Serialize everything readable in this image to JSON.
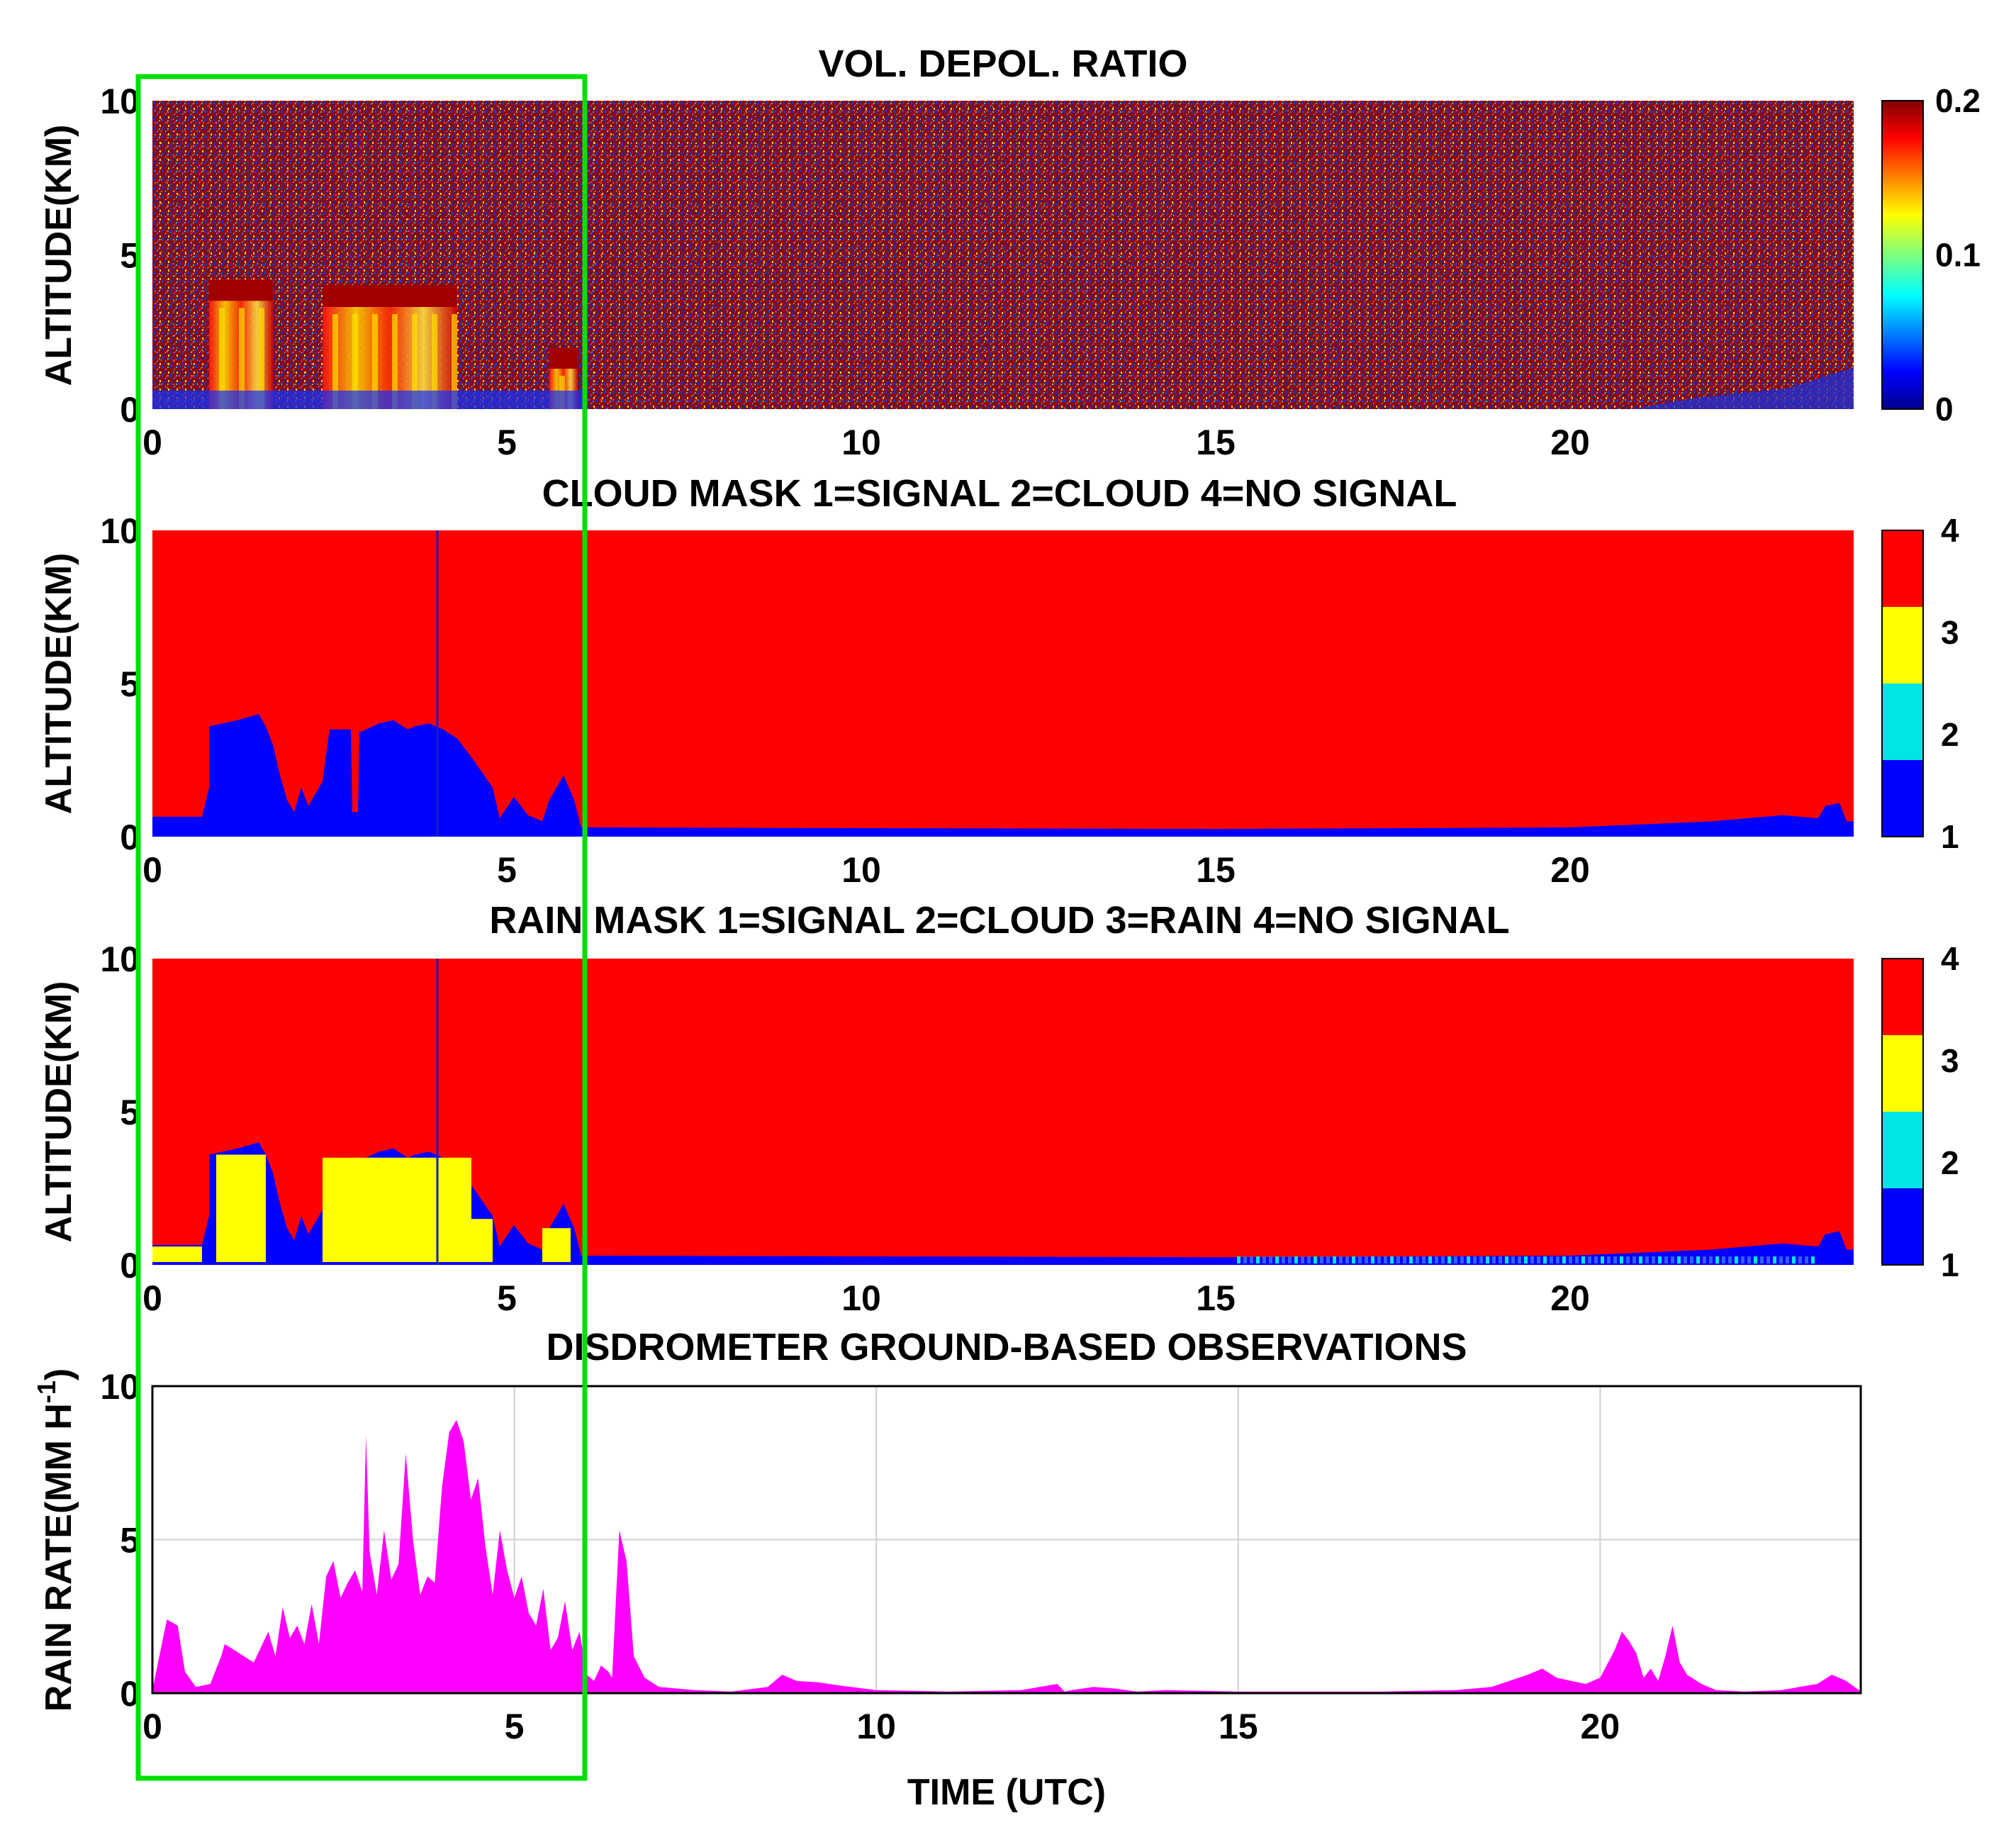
{
  "chart_data": [
    {
      "type": "heatmap",
      "title": "VOL. DEPOL. RATIO",
      "ylabel": "ALTITUDE(KM)",
      "xlabel": "",
      "xlim": [
        0,
        24
      ],
      "ylim": [
        0,
        10
      ],
      "xticks": [
        "0",
        "5",
        "10",
        "15",
        "20"
      ],
      "yticks": [
        "0",
        "5",
        "10"
      ],
      "colorbar": {
        "range": [
          0,
          0.2
        ],
        "ticks": [
          "0",
          "0.1",
          "0.2"
        ],
        "colormap": "jet"
      },
      "features": [
        {
          "name": "cloud-1",
          "t_start": 0.8,
          "t_end": 1.7,
          "top_km": 4.2
        },
        {
          "name": "cloud-2",
          "t_start": 2.4,
          "t_end": 4.3,
          "top_km": 4.0
        },
        {
          "name": "cloud-3",
          "t_start": 5.6,
          "t_end": 6.0,
          "top_km": 2.0
        }
      ]
    },
    {
      "type": "heatmap",
      "title": "CLOUD MASK 1=SIGNAL 2=CLOUD 4=NO SIGNAL",
      "ylabel": "ALTITUDE(KM)",
      "xlabel": "",
      "xlim": [
        0,
        24
      ],
      "ylim": [
        0,
        10
      ],
      "xticks": [
        "0",
        "5",
        "10",
        "15",
        "20"
      ],
      "yticks": [
        "0",
        "5",
        "10"
      ],
      "colorbar": {
        "range": [
          1,
          4
        ],
        "ticks": [
          "1",
          "2",
          "3",
          "4"
        ],
        "colors": [
          "#0000ff",
          "#00e5e5",
          "#ffff00",
          "#ff0000"
        ]
      },
      "signal_top_km": [
        [
          0,
          0.65
        ],
        [
          0.7,
          0.65
        ],
        [
          0.8,
          1.6
        ],
        [
          0.85,
          0.65
        ],
        [
          0.8,
          0.65
        ],
        [
          0.8,
          3.6
        ],
        [
          1.2,
          3.8
        ],
        [
          1.5,
          4.0
        ],
        [
          1.6,
          3.6
        ],
        [
          1.7,
          3.0
        ],
        [
          1.8,
          2.0
        ],
        [
          1.9,
          1.2
        ],
        [
          2.0,
          0.8
        ],
        [
          2.1,
          1.6
        ],
        [
          2.2,
          1.0
        ],
        [
          2.4,
          1.8
        ],
        [
          2.5,
          3.5
        ],
        [
          2.8,
          3.5
        ],
        [
          2.82,
          0.8
        ],
        [
          2.9,
          0.8
        ],
        [
          2.92,
          3.4
        ],
        [
          3.2,
          3.7
        ],
        [
          3.4,
          3.8
        ],
        [
          3.6,
          3.5
        ],
        [
          3.7,
          3.6
        ],
        [
          3.9,
          3.7
        ],
        [
          4.1,
          3.5
        ],
        [
          4.3,
          3.2
        ],
        [
          4.5,
          2.6
        ],
        [
          4.8,
          1.6
        ],
        [
          4.9,
          0.6
        ],
        [
          5.1,
          1.3
        ],
        [
          5.2,
          1.0
        ],
        [
          5.3,
          0.7
        ],
        [
          5.5,
          0.5
        ],
        [
          5.6,
          1.2
        ],
        [
          5.8,
          2.0
        ],
        [
          5.95,
          1.2
        ],
        [
          6.05,
          0.3
        ],
        [
          6.2,
          0.3
        ],
        [
          15.0,
          0.25
        ],
        [
          20.0,
          0.3
        ],
        [
          21.0,
          0.4
        ],
        [
          22.0,
          0.5
        ],
        [
          23.0,
          0.7
        ],
        [
          23.5,
          0.6
        ],
        [
          23.6,
          1.0
        ],
        [
          23.8,
          1.1
        ],
        [
          23.9,
          0.5
        ],
        [
          24,
          0.5
        ]
      ]
    },
    {
      "type": "heatmap",
      "title": "RAIN MASK 1=SIGNAL 2=CLOUD 3=RAIN 4=NO SIGNAL",
      "ylabel": "ALTITUDE(KM)",
      "xlabel": "",
      "xlim": [
        0,
        24
      ],
      "ylim": [
        0,
        10
      ],
      "xticks": [
        "0",
        "5",
        "10",
        "15",
        "20"
      ],
      "yticks": [
        "0",
        "5",
        "10"
      ],
      "colorbar": {
        "range": [
          1,
          4
        ],
        "ticks": [
          "1",
          "2",
          "3",
          "4"
        ],
        "colors": [
          "#0000ff",
          "#00e5e5",
          "#ffff00",
          "#ff0000"
        ]
      },
      "rain_intervals": [
        {
          "t_start": 0.0,
          "t_end": 0.7,
          "top_km": 0.6
        },
        {
          "t_start": 0.9,
          "t_end": 1.6,
          "top_km": 3.6
        },
        {
          "t_start": 2.4,
          "t_end": 4.5,
          "top_km": 3.5
        },
        {
          "t_start": 4.5,
          "t_end": 4.8,
          "top_km": 1.5
        },
        {
          "t_start": 5.5,
          "t_end": 5.9,
          "top_km": 1.2
        }
      ]
    },
    {
      "type": "area",
      "title": "DISDROMETER GROUND-BASED OBSERVATIONS",
      "xlabel": "TIME (UTC)",
      "ylabel": "RAIN RATE(MM H",
      "ylabel_sup": "-1",
      "ylabel_suffix": ")",
      "xlim": [
        0,
        23.6
      ],
      "ylim": [
        0,
        10
      ],
      "xticks": [
        "0",
        "5",
        "10",
        "15",
        "20"
      ],
      "yticks": [
        "0",
        "5",
        "10"
      ],
      "grid": true,
      "color": "#ff00ff",
      "x": [
        0.0,
        0.2,
        0.35,
        0.45,
        0.6,
        0.8,
        0.95,
        1.0,
        1.2,
        1.4,
        1.6,
        1.7,
        1.8,
        1.9,
        2.0,
        2.1,
        2.2,
        2.3,
        2.4,
        2.5,
        2.6,
        2.7,
        2.8,
        2.9,
        2.95,
        3.0,
        3.1,
        3.2,
        3.3,
        3.4,
        3.5,
        3.6,
        3.7,
        3.8,
        3.9,
        4.0,
        4.1,
        4.2,
        4.3,
        4.4,
        4.5,
        4.6,
        4.7,
        4.8,
        4.9,
        5.0,
        5.1,
        5.2,
        5.3,
        5.4,
        5.5,
        5.6,
        5.7,
        5.8,
        5.9,
        6.0,
        6.1,
        6.2,
        6.3,
        6.35,
        6.45,
        6.55,
        6.65,
        6.8,
        7.0,
        7.5,
        8.0,
        8.5,
        8.7,
        8.9,
        9.2,
        9.5,
        10.0,
        11.0,
        12.0,
        12.5,
        12.6,
        12.7,
        13.0,
        13.3,
        13.6,
        14.0,
        15.0,
        16.0,
        17.0,
        18.0,
        18.5,
        19.0,
        19.2,
        19.4,
        19.6,
        19.8,
        20.0,
        20.2,
        20.3,
        20.4,
        20.5,
        20.6,
        20.7,
        20.8,
        20.9,
        21.0,
        21.1,
        21.2,
        21.4,
        21.6,
        22.0,
        22.5,
        23.0,
        23.2,
        23.4,
        23.6
      ],
      "values": [
        0.1,
        2.4,
        2.2,
        0.7,
        0.2,
        0.3,
        1.2,
        1.6,
        1.3,
        1.0,
        2.0,
        1.2,
        2.8,
        1.8,
        2.2,
        1.6,
        2.9,
        1.6,
        3.8,
        4.3,
        3.1,
        3.6,
        4.0,
        3.3,
        8.4,
        4.6,
        3.2,
        5.3,
        3.7,
        4.2,
        7.8,
        5.0,
        3.2,
        3.8,
        3.6,
        6.7,
        8.5,
        8.9,
        8.2,
        6.3,
        7.0,
        4.8,
        3.2,
        5.3,
        4.0,
        3.1,
        3.8,
        2.6,
        2.2,
        3.4,
        1.4,
        1.8,
        3.0,
        1.4,
        2.0,
        0.6,
        0.4,
        0.9,
        0.7,
        0.5,
        5.3,
        4.3,
        1.2,
        0.5,
        0.2,
        0.1,
        0.05,
        0.2,
        0.6,
        0.4,
        0.35,
        0.25,
        0.1,
        0.05,
        0.1,
        0.3,
        0.05,
        0.1,
        0.2,
        0.15,
        0.05,
        0.1,
        0.05,
        0.05,
        0.05,
        0.1,
        0.2,
        0.6,
        0.8,
        0.5,
        0.4,
        0.3,
        0.5,
        1.4,
        2.0,
        1.7,
        1.3,
        0.5,
        0.8,
        0.4,
        1.2,
        2.2,
        1.0,
        0.6,
        0.3,
        0.1,
        0.05,
        0.1,
        0.3,
        0.6,
        0.4,
        0.05
      ]
    }
  ],
  "highlight": {
    "color": "#00e000",
    "t_start": -0.2,
    "t_end": 6.1
  }
}
